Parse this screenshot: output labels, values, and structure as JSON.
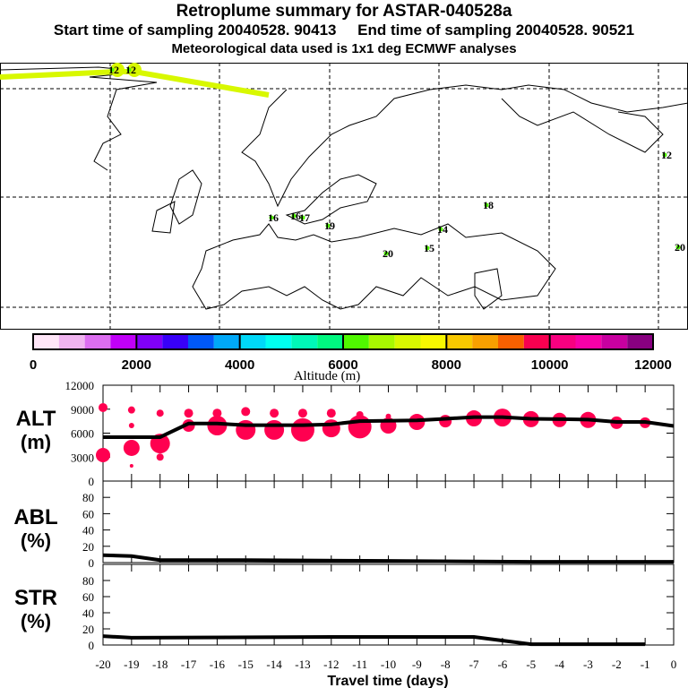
{
  "header": {
    "title": "Retroplume summary for ASTAR-040528a",
    "sampling": "Start time of sampling 20040528. 90413     End time of sampling 20040528. 90521",
    "met": "Meteorological data used is 1x1 deg ECMWF analyses"
  },
  "map": {
    "labels": [
      {
        "text": "12",
        "day": -12
      },
      {
        "text": "12",
        "day": -12
      },
      {
        "text": "16",
        "day": -16
      },
      {
        "text": "16",
        "day": -16
      },
      {
        "text": "17",
        "day": -17
      },
      {
        "text": "19",
        "day": -19
      },
      {
        "text": "20",
        "day": -20
      },
      {
        "text": "15",
        "day": -15
      },
      {
        "text": "14",
        "day": -14
      },
      {
        "text": "18",
        "day": -18
      },
      {
        "text": "12",
        "day": -12
      },
      {
        "text": "20",
        "day": -20
      }
    ]
  },
  "colorbar": {
    "title": "Altitude (m)",
    "ticks": [
      "0",
      "2000",
      "4000",
      "6000",
      "8000",
      "10000",
      "12000"
    ],
    "colors": [
      "#ffe6f8",
      "#f0b4f0",
      "#dc6ef0",
      "#c000f8",
      "#8000f8",
      "#3800f8",
      "#0058f8",
      "#00a8f8",
      "#00d8f8",
      "#00fff0",
      "#00f8b8",
      "#00f880",
      "#50f800",
      "#a8f800",
      "#d8f800",
      "#f8f800",
      "#f8c800",
      "#f8a000",
      "#f86000",
      "#f80050",
      "#f80080",
      "#f800a8",
      "#c800a0",
      "#880080"
    ]
  },
  "chart_data": [
    {
      "type": "line+scatter",
      "title": "ALT",
      "ylabel": "ALT (m)",
      "ylim": [
        0,
        12000
      ],
      "yticks": [
        "0",
        "3000",
        "6000",
        "9000",
        "12000"
      ],
      "line": {
        "x": [
          -20,
          -18,
          -17,
          -16,
          -15,
          -13,
          -12,
          -11,
          -9,
          -8,
          -7,
          -6,
          -5,
          -3,
          -2,
          -1,
          0
        ],
        "y": [
          5500,
          5500,
          7200,
          7200,
          7000,
          7000,
          7100,
          7500,
          7600,
          7800,
          8000,
          8000,
          7800,
          7700,
          7400,
          7400,
          6900
        ]
      },
      "points": [
        {
          "x": -20,
          "y": 9200,
          "size": 5
        },
        {
          "x": -20,
          "y": 3250,
          "size": 8
        },
        {
          "x": -19,
          "y": 8900,
          "size": 4
        },
        {
          "x": -19,
          "y": 6950,
          "size": 3
        },
        {
          "x": -19,
          "y": 4150,
          "size": 9
        },
        {
          "x": -19,
          "y": 1900,
          "size": 2
        },
        {
          "x": -18,
          "y": 8500,
          "size": 4
        },
        {
          "x": -18,
          "y": 4700,
          "size": 11
        },
        {
          "x": -18,
          "y": 3000,
          "size": 4
        },
        {
          "x": -17,
          "y": 8500,
          "size": 5
        },
        {
          "x": -17,
          "y": 6950,
          "size": 7
        },
        {
          "x": -16,
          "y": 8500,
          "size": 5
        },
        {
          "x": -16,
          "y": 6950,
          "size": 11
        },
        {
          "x": -15,
          "y": 8700,
          "size": 5
        },
        {
          "x": -15,
          "y": 6400,
          "size": 11
        },
        {
          "x": -14,
          "y": 8500,
          "size": 5
        },
        {
          "x": -14,
          "y": 6400,
          "size": 11
        },
        {
          "x": -13,
          "y": 8500,
          "size": 5
        },
        {
          "x": -13,
          "y": 6400,
          "size": 13
        },
        {
          "x": -12,
          "y": 8500,
          "size": 5
        },
        {
          "x": -12,
          "y": 6600,
          "size": 10
        },
        {
          "x": -11,
          "y": 8300,
          "size": 4
        },
        {
          "x": -11,
          "y": 6800,
          "size": 13
        },
        {
          "x": -10,
          "y": 8100,
          "size": 3
        },
        {
          "x": -10,
          "y": 6950,
          "size": 9
        },
        {
          "x": -9,
          "y": 7400,
          "size": 9
        },
        {
          "x": -8,
          "y": 7500,
          "size": 7
        },
        {
          "x": -7,
          "y": 7850,
          "size": 9
        },
        {
          "x": -6,
          "y": 7950,
          "size": 10
        },
        {
          "x": -5,
          "y": 7750,
          "size": 9
        },
        {
          "x": -4,
          "y": 7650,
          "size": 8
        },
        {
          "x": -3,
          "y": 7650,
          "size": 9
        },
        {
          "x": -2,
          "y": 7300,
          "size": 7
        },
        {
          "x": -1,
          "y": 7300,
          "size": 6
        }
      ]
    },
    {
      "type": "line",
      "title": "ABL",
      "ylabel": "ABL (%)",
      "ylim": [
        0,
        100
      ],
      "yticks": [
        "0",
        "20",
        "40",
        "60",
        "80"
      ],
      "x": [
        -20,
        -19,
        -18,
        -15,
        -10,
        -5,
        0
      ],
      "y": [
        9,
        8,
        3,
        3,
        2,
        1,
        1
      ]
    },
    {
      "type": "line",
      "title": "STR",
      "ylabel": "STR (%)",
      "ylim": [
        0,
        100
      ],
      "yticks": [
        "0",
        "20",
        "40",
        "60",
        "80"
      ],
      "x": [
        -20,
        -19,
        -12,
        -7,
        -5,
        -1
      ],
      "y": [
        11,
        9,
        10,
        10,
        1,
        1
      ]
    }
  ],
  "xaxis": {
    "label": "Travel time (days)",
    "ticks": [
      "-20",
      "-19",
      "-18",
      "-17",
      "-16",
      "-15",
      "-14",
      "-13",
      "-12",
      "-11",
      "-10",
      "-9",
      "-8",
      "-7",
      "-6",
      "-5",
      "-4",
      "-3",
      "-2",
      "-1",
      "0"
    ]
  },
  "panel_labels": {
    "alt": "ALT",
    "alt_unit": "(m)",
    "abl": "ABL",
    "abl_unit": "(%)",
    "str": "STR",
    "str_unit": "(%)"
  },
  "colors": {
    "dot": "#ff0050",
    "track": "#d8f800"
  }
}
